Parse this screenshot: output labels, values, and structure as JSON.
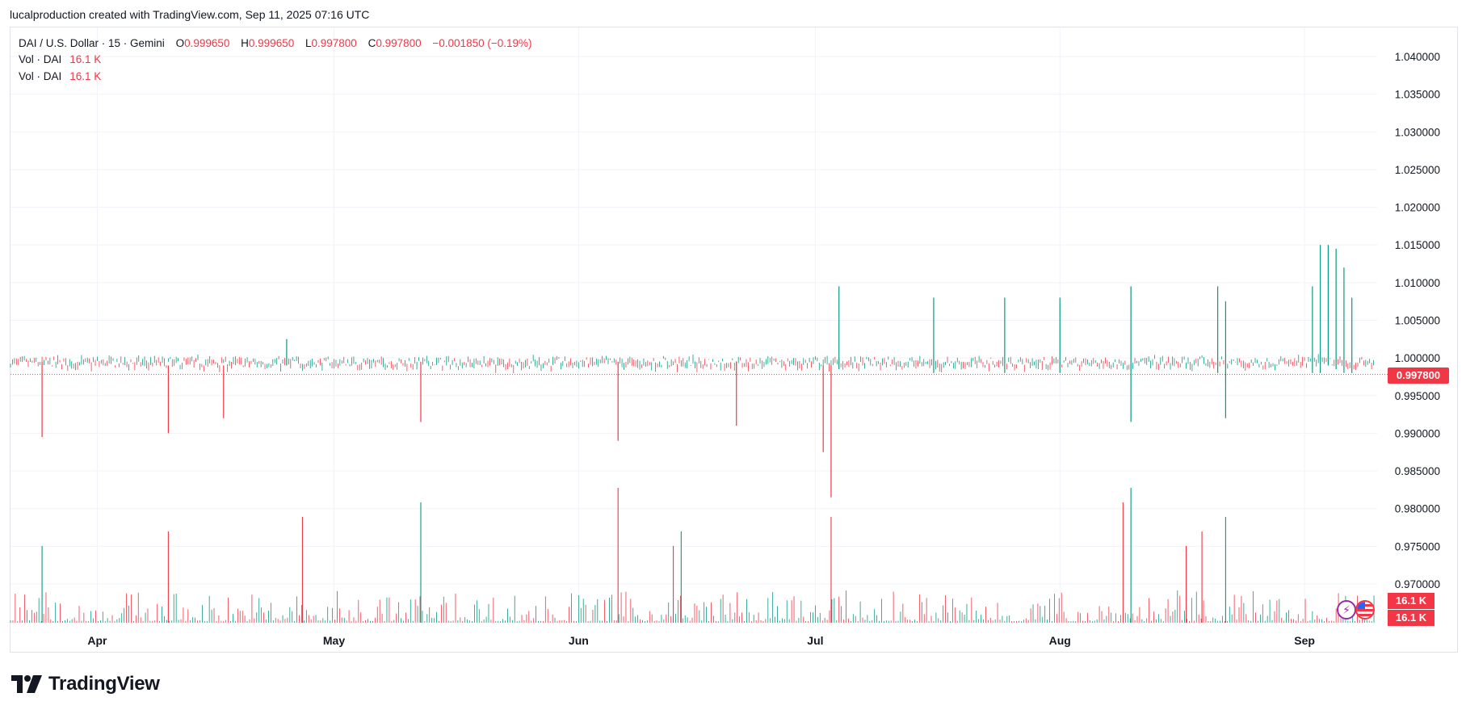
{
  "header": {
    "text": "lucalproduction created with TradingView.com, Sep 11, 2025 07:16 UTC"
  },
  "legend": {
    "symbol": "DAI / U.S. Dollar · 15 · Gemini",
    "open_label": "O",
    "open": "0.999650",
    "high_label": "H",
    "high": "0.999650",
    "low_label": "L",
    "low": "0.997800",
    "close_label": "C",
    "close": "0.997800",
    "change": "−0.001850 (−0.19%)",
    "vol_label_1": "Vol · DAI",
    "vol_value_1": "16.1 K",
    "vol_label_2": "Vol · DAI",
    "vol_value_2": "16.1 K"
  },
  "price_tag": "0.997800",
  "volume_tags": [
    "16.1 K",
    "16.1 K"
  ],
  "brand": {
    "name": "TradingView"
  },
  "colors": {
    "up": "#089981",
    "down": "#f23645",
    "grid": "#f0f3fa",
    "text": "#131722"
  },
  "icons": [
    "lightning-badge-icon",
    "us-flag-icon",
    "tradingview-logo-icon"
  ],
  "chart_data": {
    "type": "candlestick",
    "interval": "15",
    "y_axis": {
      "ticks": [
        "1.040000",
        "1.035000",
        "1.030000",
        "1.025000",
        "1.020000",
        "1.015000",
        "1.010000",
        "1.005000",
        "1.000000",
        "0.995000",
        "0.990000",
        "0.985000",
        "0.980000",
        "0.975000",
        "0.970000"
      ],
      "range": [
        0.9655,
        1.0425
      ]
    },
    "x_axis": {
      "labels": [
        "Apr",
        "May",
        "Jun",
        "Jul",
        "Aug",
        "Sep"
      ]
    },
    "last_price": 0.9978,
    "typical_band": [
      0.998,
      1.0
    ],
    "notable_wicks": [
      {
        "date": "Mar 24",
        "high": 0.9995,
        "low": 0.9895
      },
      {
        "date": "Apr 09",
        "high": 0.999,
        "low": 0.99
      },
      {
        "date": "Apr 16",
        "high": 0.999,
        "low": 0.992
      },
      {
        "date": "Apr 24",
        "high": 1.0025,
        "low": 0.999
      },
      {
        "date": "May 11",
        "high": 0.9995,
        "low": 0.9915
      },
      {
        "date": "Jun 05",
        "high": 0.9995,
        "low": 0.989
      },
      {
        "date": "Jun 20",
        "high": 0.9995,
        "low": 0.991
      },
      {
        "date": "Jul 01",
        "high": 0.999,
        "low": 0.9875
      },
      {
        "date": "Jul 02",
        "high": 0.999,
        "low": 0.9815
      },
      {
        "date": "Jul 03",
        "high": 1.0095,
        "low": 0.9985
      },
      {
        "date": "Jul 15",
        "high": 1.008,
        "low": 0.998
      },
      {
        "date": "Jul 24",
        "high": 1.008,
        "low": 0.998
      },
      {
        "date": "Jul 31",
        "high": 1.008,
        "low": 0.998
      },
      {
        "date": "Aug 09",
        "high": 1.0095,
        "low": 0.9915
      },
      {
        "date": "Aug 20",
        "high": 1.0095,
        "low": 0.998
      },
      {
        "date": "Aug 21",
        "high": 1.0075,
        "low": 0.992
      },
      {
        "date": "Sep 01",
        "high": 1.0095,
        "low": 0.998
      },
      {
        "date": "Sep 02",
        "high": 1.015,
        "low": 0.998
      },
      {
        "date": "Sep 03",
        "high": 1.015,
        "low": 0.999
      },
      {
        "date": "Sep 04",
        "high": 1.0145,
        "low": 0.9985
      },
      {
        "date": "Sep 05",
        "high": 1.012,
        "low": 0.998
      },
      {
        "date": "Sep 06",
        "high": 1.008,
        "low": 0.998
      }
    ],
    "volume": {
      "last": "16.1 K",
      "notable_spikes": [
        "Mar 24",
        "Apr 09",
        "Apr 26",
        "May 11",
        "Jun 05",
        "Jun 12",
        "Jun 13",
        "Jul 02",
        "Aug 08",
        "Aug 09",
        "Aug 16",
        "Aug 18",
        "Aug 21"
      ]
    }
  }
}
